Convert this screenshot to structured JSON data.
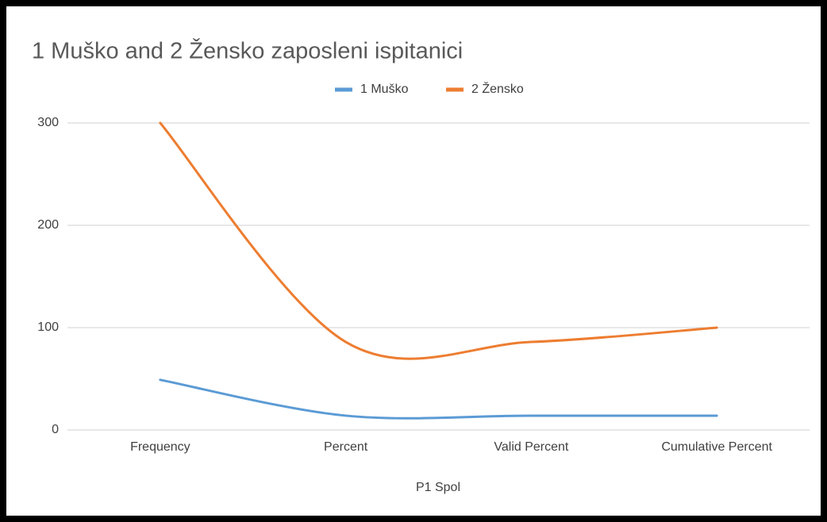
{
  "chart_data": {
    "type": "line",
    "title": "1 Muško and 2 Žensko zaposleni ispitanici",
    "x_label": "P1 Spol",
    "categories": [
      "Frequency",
      "Percent",
      "Valid Percent",
      "Cumulative Percent"
    ],
    "series": [
      {
        "name": "1 Muško",
        "color": "#5b9bd5",
        "values": [
          49,
          14,
          14,
          14
        ]
      },
      {
        "name": "2 Žensko",
        "color": "#ed7d31",
        "values": [
          300,
          86,
          86,
          100
        ]
      }
    ],
    "ylim": [
      0,
      300
    ],
    "yticks": [
      0,
      100,
      200,
      300
    ],
    "grid": true,
    "smooth": true,
    "legend": "top"
  }
}
